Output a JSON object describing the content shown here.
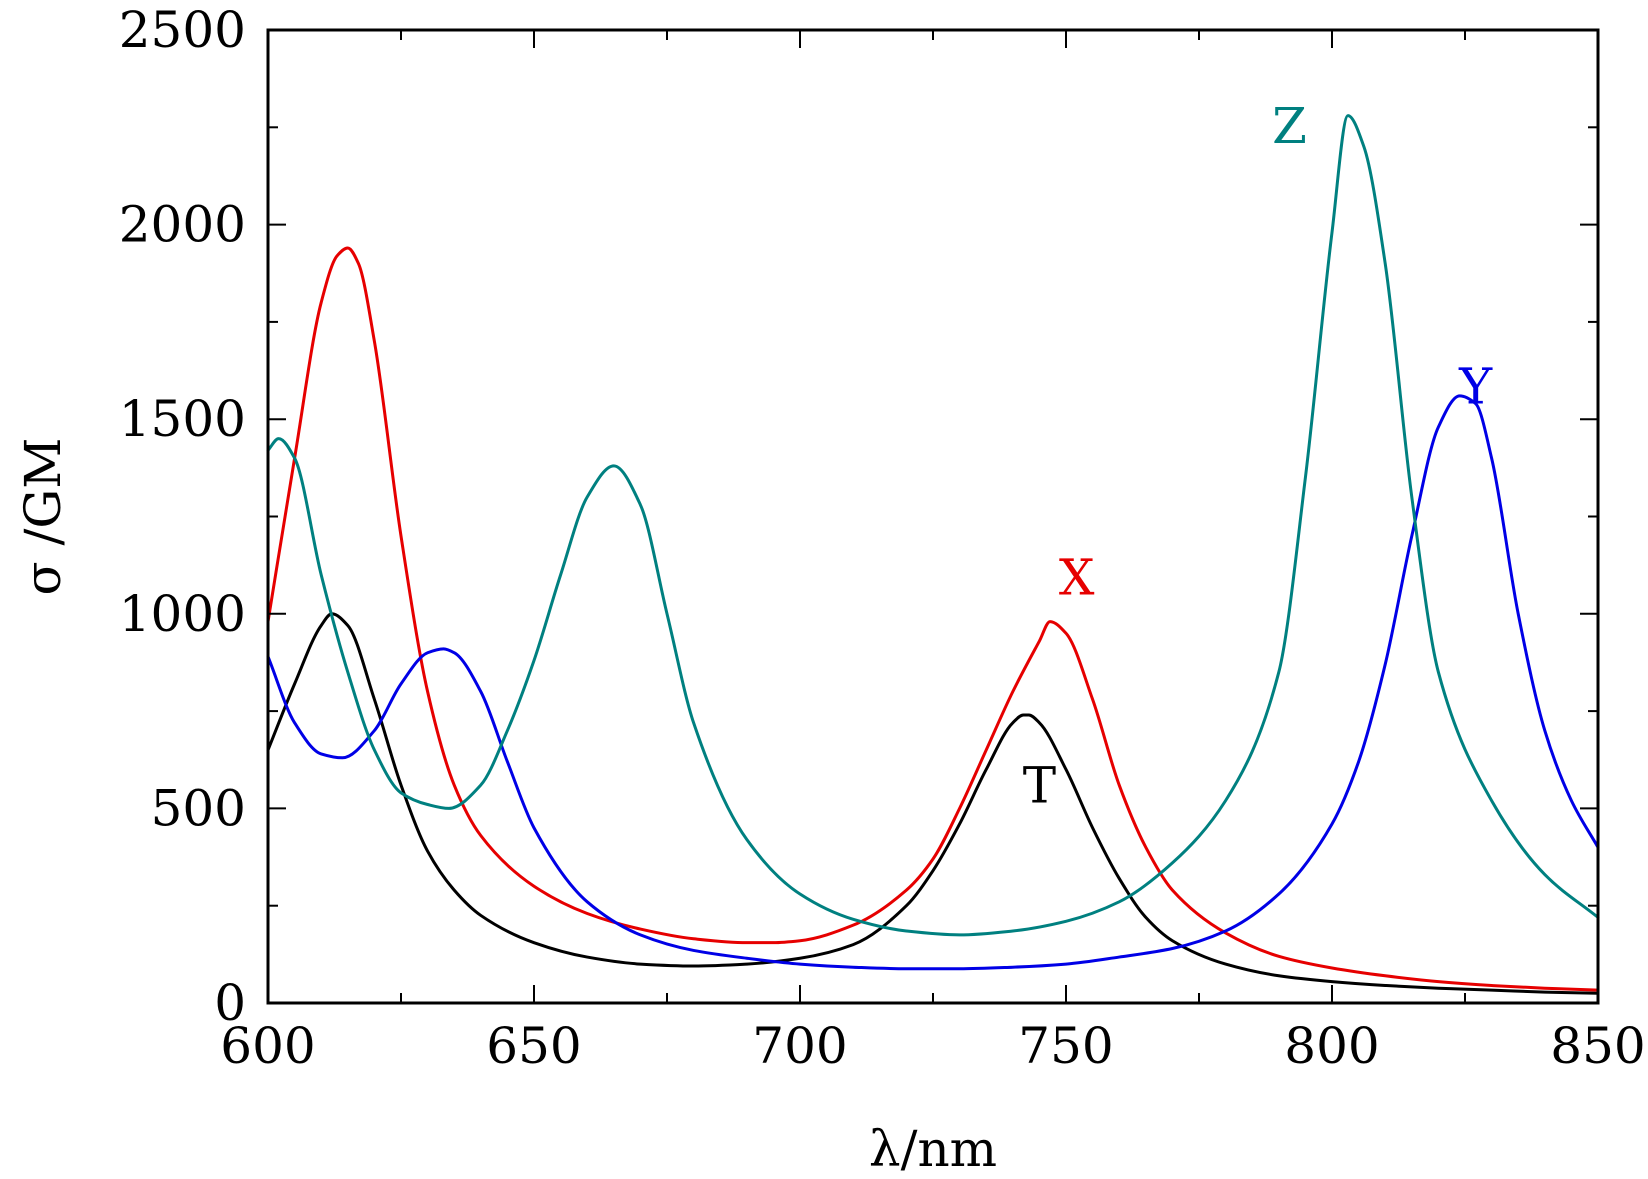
{
  "chart_data": {
    "type": "line",
    "xlabel": "λ/nm",
    "ylabel": "σ /GM",
    "xlim": [
      600,
      850
    ],
    "ylim": [
      0,
      2500
    ],
    "x_ticks": [
      600,
      650,
      700,
      750,
      800,
      850
    ],
    "y_ticks": [
      0,
      500,
      1000,
      1500,
      2000,
      2500
    ],
    "x_tick_labels": [
      "600",
      "650",
      "700",
      "750",
      "800",
      "850"
    ],
    "y_tick_labels": [
      "0",
      "500",
      "1000",
      "1500",
      "2000",
      "2500"
    ],
    "grid": false,
    "legend": "none",
    "series": [
      {
        "name": "T",
        "color": "#000000",
        "label_at": [
          745,
          515
        ],
        "x": [
          600,
          605,
          610,
          612,
          615,
          620,
          625,
          630,
          635,
          640,
          650,
          660,
          670,
          680,
          690,
          700,
          710,
          720,
          725,
          730,
          735,
          740,
          742,
          743,
          745,
          750,
          755,
          760,
          765,
          770,
          780,
          790,
          800,
          810,
          820,
          830,
          840,
          850
        ],
        "values": [
          650,
          820,
          970,
          1000,
          970,
          780,
          560,
          390,
          290,
          225,
          155,
          118,
          100,
          95,
          100,
          115,
          150,
          250,
          340,
          460,
          600,
          720,
          740,
          740,
          720,
          600,
          450,
          320,
          220,
          160,
          100,
          70,
          55,
          45,
          38,
          33,
          28,
          25
        ]
      },
      {
        "name": "X",
        "color": "#e60000",
        "label_at": [
          752,
          1050
        ],
        "x": [
          600,
          605,
          610,
          613,
          615,
          617,
          620,
          625,
          630,
          635,
          640,
          650,
          660,
          670,
          680,
          690,
          695,
          700,
          710,
          720,
          725,
          730,
          735,
          740,
          745,
          747,
          750,
          755,
          760,
          765,
          770,
          780,
          790,
          800,
          810,
          820,
          830,
          840,
          850
        ],
        "values": [
          980,
          1400,
          1800,
          1920,
          1940,
          1900,
          1700,
          1200,
          800,
          560,
          430,
          300,
          230,
          190,
          165,
          155,
          155,
          160,
          200,
          290,
          370,
          500,
          650,
          800,
          930,
          980,
          950,
          780,
          560,
          400,
          290,
          180,
          120,
          90,
          70,
          55,
          45,
          38,
          33
        ]
      },
      {
        "name": "Y",
        "color": "#0000e6",
        "label_at": [
          827,
          1540
        ],
        "x": [
          600,
          605,
          610,
          614,
          620,
          625,
          630,
          633,
          635,
          640,
          645,
          650,
          660,
          670,
          680,
          690,
          700,
          710,
          720,
          730,
          740,
          750,
          760,
          770,
          780,
          790,
          800,
          805,
          810,
          815,
          820,
          824,
          827,
          830,
          835,
          840,
          845,
          850
        ],
        "values": [
          890,
          720,
          640,
          630,
          700,
          820,
          900,
          910,
          900,
          800,
          620,
          450,
          260,
          175,
          135,
          115,
          100,
          92,
          88,
          88,
          92,
          100,
          118,
          140,
          185,
          280,
          460,
          620,
          870,
          1200,
          1480,
          1560,
          1540,
          1400,
          1000,
          700,
          520,
          400
        ]
      },
      {
        "name": "Z",
        "color": "#008080",
        "label_at": [
          792,
          2210
        ],
        "x": [
          600,
          602,
          605,
          610,
          615,
          620,
          625,
          630,
          634,
          640,
          645,
          650,
          655,
          660,
          665,
          670,
          675,
          680,
          690,
          700,
          710,
          720,
          730,
          740,
          750,
          760,
          770,
          780,
          790,
          795,
          800,
          803,
          806,
          810,
          815,
          820,
          830,
          840,
          850
        ],
        "values": [
          1420,
          1450,
          1400,
          1100,
          850,
          650,
          540,
          510,
          500,
          560,
          700,
          880,
          1100,
          1300,
          1380,
          1280,
          1000,
          720,
          420,
          280,
          215,
          185,
          175,
          185,
          210,
          260,
          360,
          520,
          850,
          1350,
          1980,
          2280,
          2200,
          1900,
          1300,
          850,
          520,
          330,
          220
        ]
      }
    ]
  }
}
